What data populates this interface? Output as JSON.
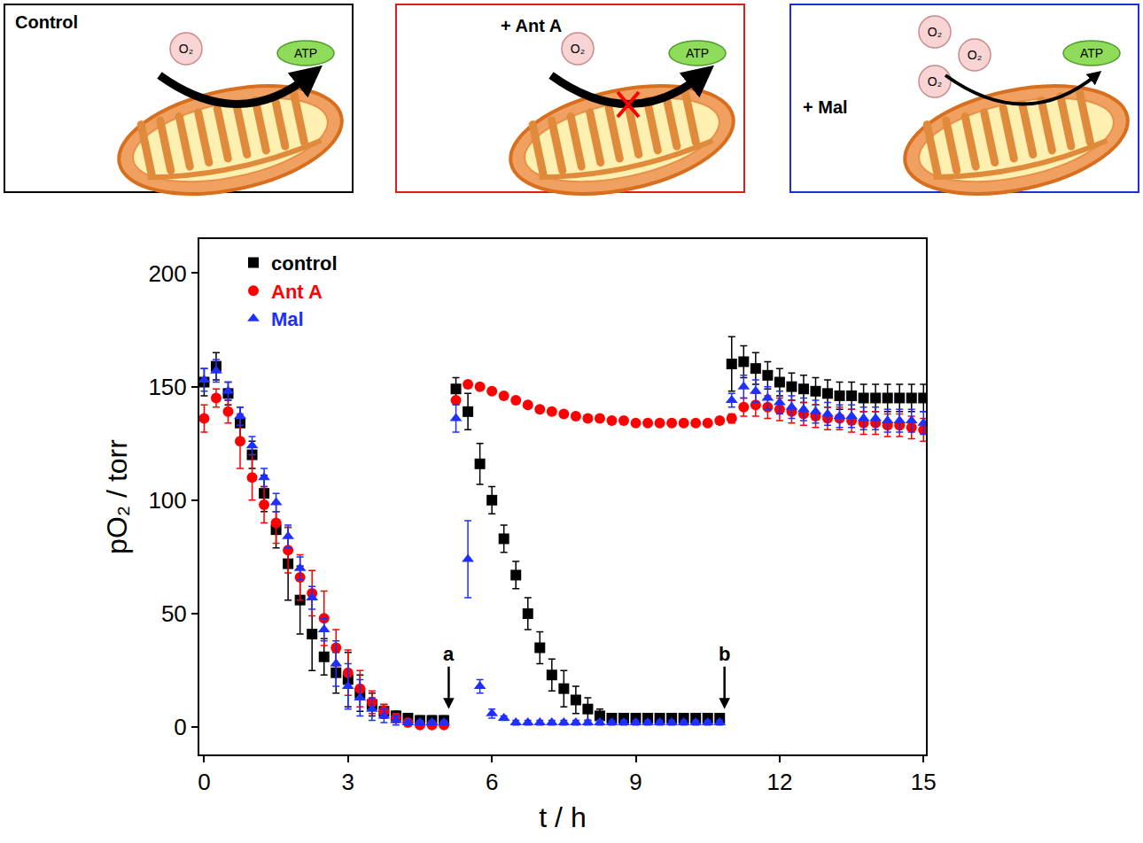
{
  "panels": [
    {
      "title": "Control",
      "color": "#000000",
      "reactant_labels": [
        "O₂"
      ],
      "product_label": "ATP",
      "blocked": false
    },
    {
      "title": "+ Ant A",
      "color": "#e41a1c",
      "reactant_labels": [
        "O₂"
      ],
      "product_label": "ATP",
      "blocked": true
    },
    {
      "title": "+ Mal",
      "color": "#1f2fd6",
      "reactant_labels": [
        "O₂",
        "O₂",
        "O₂"
      ],
      "product_label": "ATP",
      "blocked": false
    }
  ],
  "chart_data": {
    "type": "scatter",
    "x_label": "t / h",
    "y_label": "pO₂ / torr",
    "xlim": [
      -0.1,
      15.05
    ],
    "ylim": [
      -12,
      215
    ],
    "xticks": [
      0,
      3,
      6,
      9,
      12,
      15
    ],
    "yticks": [
      0,
      50,
      100,
      150,
      200
    ],
    "grid": false,
    "legend": "upper left",
    "x": [
      0,
      0.25,
      0.5,
      0.75,
      1,
      1.25,
      1.5,
      1.75,
      2,
      2.25,
      2.5,
      2.75,
      3,
      3.25,
      3.5,
      3.75,
      4,
      4.25,
      4.5,
      4.75,
      5,
      5.25,
      5.5,
      5.75,
      6,
      6.25,
      6.5,
      6.75,
      7,
      7.25,
      7.5,
      7.75,
      8,
      8.25,
      8.5,
      8.75,
      9,
      9.25,
      9.5,
      9.75,
      10,
      10.25,
      10.5,
      10.75,
      11,
      11.25,
      11.5,
      11.75,
      12,
      12.25,
      12.5,
      12.75,
      13,
      13.25,
      13.5,
      13.75,
      14,
      14.25,
      14.5,
      14.75,
      15
    ],
    "series": [
      {
        "name": "control",
        "color": "#000000",
        "marker": "square",
        "values": [
          152,
          159,
          147,
          134,
          120,
          103,
          87,
          72,
          56,
          41,
          31,
          24,
          21,
          15,
          10,
          7,
          5,
          4,
          3,
          3,
          3,
          149,
          139,
          116,
          100,
          83,
          67,
          50,
          35,
          23,
          17,
          12,
          8,
          5,
          4,
          4,
          4,
          4,
          4,
          4,
          4,
          4,
          4,
          4,
          160,
          161,
          158,
          155,
          152,
          150,
          149,
          148,
          147,
          146,
          146,
          145,
          145,
          145,
          145,
          145,
          145
        ],
        "errors": [
          6,
          6,
          5,
          7,
          6,
          8,
          8,
          16,
          15,
          16,
          8,
          9,
          12,
          8,
          5,
          3,
          2,
          2,
          2,
          2,
          2,
          5,
          8,
          9,
          6,
          6,
          6,
          7,
          7,
          7,
          8,
          6,
          5,
          3,
          2,
          2,
          2,
          2,
          2,
          2,
          2,
          2,
          2,
          2,
          12,
          7,
          7,
          6,
          6,
          6,
          6,
          6,
          6,
          6,
          6,
          6,
          6,
          6,
          6,
          6,
          6
        ]
      },
      {
        "name": "Ant A",
        "color": "#ff0000",
        "marker": "circle",
        "values": [
          136,
          145,
          139,
          126,
          110,
          98,
          90,
          78,
          66,
          59,
          48,
          35,
          24,
          17,
          11,
          7,
          4,
          2,
          1,
          1,
          1,
          144,
          151,
          150,
          148,
          146,
          144,
          142,
          140,
          139,
          138,
          137,
          136,
          136,
          135,
          135,
          134,
          134,
          134,
          134,
          134,
          134,
          134,
          135,
          136,
          141,
          142,
          141,
          140,
          139,
          138,
          137,
          136,
          136,
          135,
          134,
          134,
          133,
          133,
          132,
          131
        ],
        "errors": [
          6,
          4,
          5,
          12,
          10,
          8,
          9,
          10,
          10,
          10,
          12,
          8,
          10,
          8,
          5,
          3,
          2,
          1,
          1,
          1,
          1,
          1,
          1,
          1,
          1,
          1,
          1,
          1,
          1,
          1,
          1,
          1,
          1,
          1,
          1,
          1,
          1,
          1,
          1,
          1,
          1,
          1,
          1,
          1,
          2,
          4,
          5,
          5,
          5,
          5,
          5,
          5,
          5,
          5,
          5,
          5,
          5,
          5,
          5,
          5,
          5
        ]
      },
      {
        "name": "Mal",
        "color": "#1f2fff",
        "marker": "triangle-up",
        "values": [
          153,
          157,
          148,
          137,
          124,
          110,
          99,
          84,
          70,
          57,
          43,
          28,
          18,
          13,
          8,
          5,
          3,
          2,
          2,
          2,
          2,
          136,
          74,
          18,
          6,
          4,
          2,
          2,
          2,
          2,
          2,
          2,
          2,
          2,
          2,
          2,
          2,
          2,
          2,
          2,
          2,
          2,
          2,
          2,
          144,
          150,
          148,
          145,
          143,
          141,
          140,
          139,
          138,
          137,
          137,
          136,
          136,
          135,
          135,
          135,
          134
        ],
        "errors": [
          5,
          5,
          4,
          4,
          4,
          4,
          4,
          5,
          5,
          5,
          5,
          10,
          10,
          8,
          5,
          3,
          2,
          1,
          1,
          1,
          1,
          6,
          17,
          3,
          2,
          1,
          1,
          1,
          1,
          1,
          1,
          1,
          1,
          1,
          1,
          1,
          1,
          1,
          1,
          1,
          1,
          1,
          1,
          1,
          3,
          5,
          5,
          5,
          5,
          5,
          5,
          5,
          5,
          5,
          5,
          5,
          5,
          5,
          5,
          5,
          5
        ]
      }
    ],
    "annotations": [
      {
        "text": "a",
        "x": 5.1,
        "y": 8
      },
      {
        "text": "b",
        "x": 10.85,
        "y": 8
      }
    ]
  }
}
